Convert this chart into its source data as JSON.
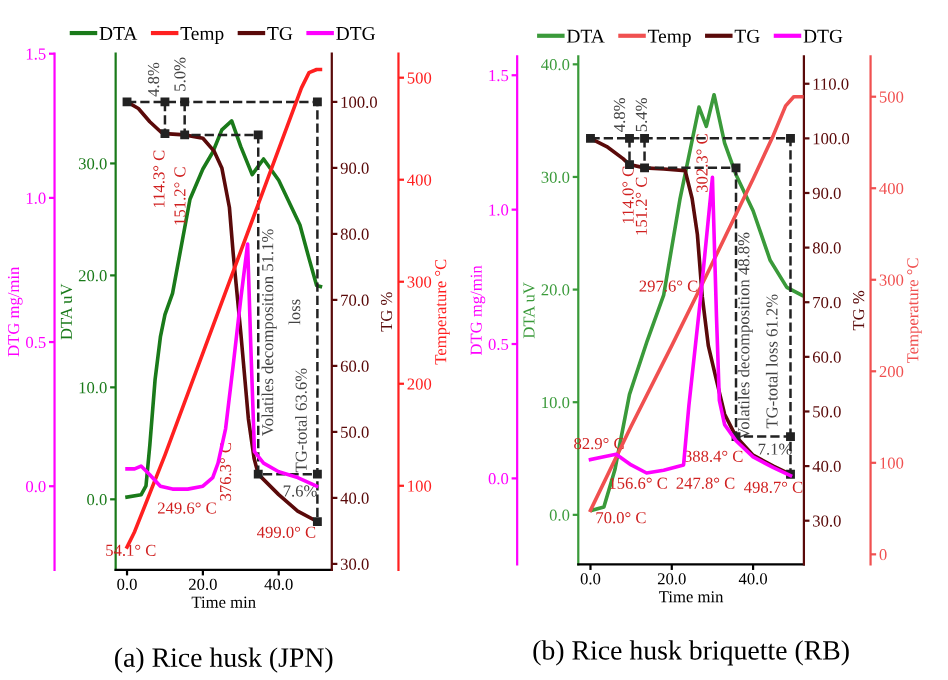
{
  "chart_data": [
    {
      "type": "line",
      "title": "(a) Rice husk (JPN)",
      "xlabel": "Time min",
      "ylabel": "DTA uV",
      "y2label": "TG %",
      "y3label": "Temperature °C",
      "legend": "top",
      "grid": false,
      "xlim": [
        -3,
        54
      ],
      "xticks": [
        {
          "value": 0,
          "label": "0.0"
        },
        {
          "value": 20,
          "label": "20.0"
        },
        {
          "value": 40,
          "label": "40.0"
        }
      ],
      "ylim": [
        -6.3,
        39.8
      ],
      "yticks": [
        {
          "value": 0,
          "label": "0.0"
        },
        {
          "value": 10,
          "label": "10.0"
        },
        {
          "value": 20,
          "label": "20.0"
        },
        {
          "value": 30,
          "label": "30.0"
        }
      ],
      "y2lim": [
        29.1,
        107.3
      ],
      "y2ticks": [
        {
          "value": 30,
          "label": "30.0"
        },
        {
          "value": 40,
          "label": "40.0"
        },
        {
          "value": 50,
          "label": "50.0"
        },
        {
          "value": 60,
          "label": "60.0"
        },
        {
          "value": 70,
          "label": "70.0"
        },
        {
          "value": 80,
          "label": "80.0"
        },
        {
          "value": 90,
          "label": "90.0"
        },
        {
          "value": 100,
          "label": "100.0"
        }
      ],
      "y3lim": [
        17.6,
        523.5
      ],
      "y3ticks": [
        100,
        200,
        300,
        400,
        500
      ],
      "series": [
        {
          "name": "DTA",
          "color": "#1a7a1a",
          "x": [
            0,
            3.7,
            5,
            6,
            7.4,
            8.8,
            10,
            12,
            16.6,
            20,
            22.6,
            25,
            27.6,
            30,
            33,
            36,
            40,
            45.6,
            48,
            50,
            51
          ],
          "values": [
            0.2,
            0.4,
            1.2,
            4.8,
            10.7,
            14.5,
            16.5,
            18.4,
            26.8,
            29.5,
            31,
            33,
            33.8,
            31.5,
            29,
            30.4,
            28.5,
            24.5,
            21.5,
            19.1,
            19
          ]
        },
        {
          "name": "Temp",
          "color": "#ff2020",
          "axis": "y3",
          "x": [
            0,
            2,
            10,
            20,
            30,
            40,
            46,
            48,
            50,
            51
          ],
          "values": [
            40,
            55,
            130,
            230,
            330,
            430,
            490,
            505,
            508,
            508
          ]
        },
        {
          "name": "TG",
          "color": "#5a0a0a",
          "axis": "y2",
          "x": [
            0,
            3,
            6,
            9,
            10,
            15.2,
            20,
            23,
            25,
            27,
            28,
            30,
            32,
            33.5,
            34.6,
            40,
            45,
            50.2
          ],
          "values": [
            100,
            99,
            97,
            95.4,
            95.2,
            95.0,
            94.5,
            92.5,
            90,
            84,
            77,
            65,
            52,
            46,
            43.6,
            40.5,
            38,
            36.4
          ]
        },
        {
          "color": "#222222",
          "axis": "y2",
          "line_style": "dashed",
          "marker": "square",
          "x": [
            0,
            50.2,
            50.2
          ],
          "values": [
            100,
            100,
            36.4
          ]
        },
        {
          "color": "#222222",
          "axis": "y2",
          "line_style": "dashed",
          "marker": "square",
          "x": [
            15.2,
            15.2,
            34.6,
            34.6,
            50.2
          ],
          "values": [
            100,
            95.0,
            95.0,
            43.6,
            43.6
          ]
        },
        {
          "color": "#222222",
          "axis": "y2",
          "line_style": "dashed",
          "marker": "square",
          "x": [
            10,
            10
          ],
          "values": [
            100,
            95.2
          ]
        }
      ],
      "annotations": [
        "4.8%",
        "5.0%",
        "114.3° C",
        "151.2° C",
        "Volatiles decomposition 51.1%",
        "loss",
        "TG-total 63.6%",
        "54.1° C",
        "249.6° C",
        "376.3° C",
        "7.6%",
        "499.0° C"
      ]
    },
    {
      "type": "line",
      "ylabel": "DTG mg/min",
      "tick_labels": "y",
      "xlim": [
        -3,
        54
      ],
      "ylim": [
        -0.29,
        1.5
      ],
      "yticks": [
        {
          "value": 0,
          "label": "0.0"
        },
        {
          "value": 0.5,
          "label": "0.5"
        },
        {
          "value": 1,
          "label": "1.0"
        },
        {
          "value": 1.5,
          "label": "1.5"
        }
      ],
      "series": [
        {
          "name": "DTG",
          "color": "#ff00ff",
          "x": [
            0,
            2,
            3.7,
            6,
            8.8,
            12,
            16,
            20,
            22.6,
            24,
            26,
            28,
            30,
            31.8,
            32.6,
            33.6,
            36,
            40,
            45,
            50
          ],
          "values": [
            0.06,
            0.06,
            0.07,
            0.04,
            0.0,
            -0.01,
            -0.01,
            0.0,
            0.03,
            0.08,
            0.2,
            0.42,
            0.65,
            0.84,
            0.5,
            0.12,
            0.08,
            0.05,
            0.03,
            0.0
          ]
        }
      ]
    },
    {
      "type": "line",
      "title": "(b) Rice husk briquette (RB)",
      "xlabel": "Time min",
      "ylabel": "DTA uV",
      "y2label": "TG %",
      "y3label": "Temperature °C",
      "legend": "top",
      "grid": false,
      "xlim": [
        -3,
        52.5
      ],
      "xticks": [
        {
          "value": 0,
          "label": "0.0"
        },
        {
          "value": 20,
          "label": "20.0"
        },
        {
          "value": 40,
          "label": "40.0"
        }
      ],
      "ylim": [
        -4.4,
        40.7
      ],
      "yticks": [
        {
          "value": 0,
          "label": "0.0"
        },
        {
          "value": 10,
          "label": "10.0"
        },
        {
          "value": 20,
          "label": "20.0"
        },
        {
          "value": 30,
          "label": "30.0"
        },
        {
          "value": 40,
          "label": "40.0"
        }
      ],
      "y2lim": [
        22,
        115
      ],
      "y2ticks": [
        {
          "value": 30,
          "label": "30.0"
        },
        {
          "value": 40,
          "label": "40.0"
        },
        {
          "value": 50,
          "label": "50.0"
        },
        {
          "value": 60,
          "label": "60.0"
        },
        {
          "value": 70,
          "label": "70.0"
        },
        {
          "value": 80,
          "label": "80.0"
        },
        {
          "value": 90,
          "label": "90.0"
        },
        {
          "value": 100,
          "label": "100.0"
        },
        {
          "value": 110,
          "label": "110.0"
        }
      ],
      "y3lim": [
        -11,
        544
      ],
      "y3ticks": [
        0,
        100,
        200,
        300,
        400,
        500
      ],
      "series": [
        {
          "name": "DTA",
          "color": "#3a9a3a",
          "x": [
            0.4,
            3.3,
            6,
            9.6,
            14,
            18,
            22,
            26.7,
            28.5,
            30.4,
            33,
            35.8,
            40,
            44.2,
            48.3,
            52
          ],
          "values": [
            0.4,
            0.7,
            4,
            10.7,
            15.5,
            19.5,
            28,
            36.2,
            34.5,
            37.3,
            33,
            30.2,
            27,
            22.6,
            20.2,
            19.5
          ]
        },
        {
          "name": "Temp",
          "color": "#f05050",
          "axis": "y3",
          "x": [
            0,
            10,
            20,
            28,
            40,
            45,
            48,
            50,
            52
          ],
          "values": [
            48,
            140,
            228,
            300,
            410,
            458,
            490,
            500,
            500
          ]
        },
        {
          "name": "TG",
          "color": "#5a0a0a",
          "axis": "y2",
          "x": [
            0,
            4,
            8,
            9.6,
            13.3,
            18,
            23.3,
            25,
            26.3,
            27.5,
            29,
            31,
            33,
            35.8,
            40,
            45,
            49.2
          ],
          "values": [
            100,
            98.5,
            96.3,
            95.2,
            94.6,
            94.4,
            94.1,
            89,
            82.4,
            71,
            62,
            55.7,
            49.5,
            45.4,
            42,
            40,
            38.5
          ]
        },
        {
          "color": "#222222",
          "axis": "y2",
          "line_style": "dashed",
          "marker": "square",
          "x": [
            0,
            49.2,
            49.2
          ],
          "values": [
            100,
            100,
            38.5
          ]
        },
        {
          "color": "#222222",
          "axis": "y2",
          "line_style": "dashed",
          "marker": "square",
          "x": [
            13.3,
            13.3,
            35.8,
            35.8,
            49.2
          ],
          "values": [
            100,
            94.6,
            94.6,
            45.4,
            45.4
          ]
        },
        {
          "color": "#222222",
          "axis": "y2",
          "line_style": "dashed",
          "marker": "square",
          "x": [
            9.6,
            9.6
          ],
          "values": [
            100,
            95.2
          ]
        }
      ],
      "annotations": [
        "4.8%",
        "5.4%",
        "114.0° C",
        "151.2° C",
        "302.3° C",
        "297.6° C",
        "Volatiles decomposition 48.8%",
        "TG-total loss 61.2%",
        "7.1%",
        "388.4° C",
        "82.9° C",
        "156.6° C",
        "247.8° C",
        "498.7° C",
        "70.0° C"
      ]
    },
    {
      "type": "line",
      "ylabel": "DTG mg/min",
      "tick_labels": "y",
      "xlim": [
        -3,
        52.5
      ],
      "ylim": [
        -0.32,
        1.57
      ],
      "yticks": [
        {
          "value": 0,
          "label": "0.0"
        },
        {
          "value": 0.5,
          "label": "0.5"
        },
        {
          "value": 1,
          "label": "1.0"
        },
        {
          "value": 1.5,
          "label": "1.5"
        }
      ],
      "series": [
        {
          "name": "DTG",
          "color": "#ff00ff",
          "x": [
            0,
            3,
            6.3,
            10,
            13.8,
            18,
            22.9,
            24.2,
            27,
            30,
            31,
            31.7,
            33,
            35.8,
            40,
            45,
            49.2
          ],
          "values": [
            0.07,
            0.08,
            0.09,
            0.05,
            0.02,
            0.03,
            0.05,
            0.27,
            0.66,
            1.12,
            0.6,
            0.29,
            0.2,
            0.14,
            0.08,
            0.04,
            0.01
          ]
        }
      ]
    }
  ]
}
